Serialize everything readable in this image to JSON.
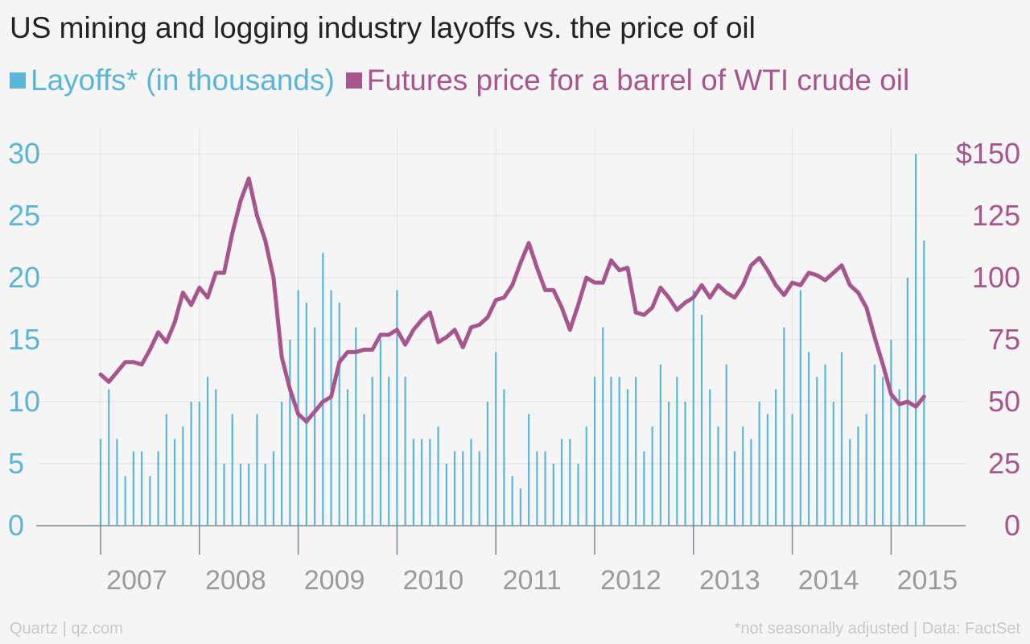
{
  "page": {
    "title": "US mining and logging industry layoffs vs. the price of oil",
    "source_left": "Quartz | qz.com",
    "source_right": "*not seasonally adjusted | Data: FactSet"
  },
  "colors": {
    "layoffs": "#5bb5d9",
    "oil": "#a8558e",
    "grid": "#e2e2e2",
    "axis": "#7a8a96",
    "xtick": "#9a9a9a"
  },
  "chart_data": {
    "type": "bar",
    "title": "US mining and logging industry layoffs vs. the price of oil",
    "x_ticks": [
      "2007",
      "2008",
      "2009",
      "2010",
      "2011",
      "2012",
      "2013",
      "2014",
      "2015"
    ],
    "y_left": {
      "min": 0,
      "max": 30,
      "ticks": [
        0,
        5,
        10,
        15,
        20,
        25,
        30
      ],
      "tick_labels": [
        "0",
        "5",
        "10",
        "15",
        "20",
        "25",
        "30"
      ]
    },
    "y_right": {
      "min": 0,
      "max": 150,
      "ticks": [
        0,
        25,
        50,
        75,
        100,
        125,
        150
      ],
      "tick_labels": [
        "0",
        "25",
        "50",
        "75",
        "100",
        "125",
        "$150"
      ]
    },
    "x_start": "2007-01",
    "grid": true,
    "legend_position": "top-left",
    "series": [
      {
        "name": "Layoffs* (in thousands)",
        "type": "bar",
        "axis": "left",
        "color": "#5bb5d9",
        "values": [
          7,
          11,
          7,
          4,
          6,
          6,
          4,
          6,
          9,
          7,
          8,
          10,
          10,
          12,
          11,
          5,
          9,
          5,
          5,
          9,
          5,
          6,
          10,
          15,
          19,
          18,
          16,
          22,
          19,
          18,
          11,
          16,
          9,
          12,
          15,
          12,
          19,
          12,
          7,
          7,
          7,
          8,
          5,
          6,
          6,
          7,
          6,
          10,
          14,
          11,
          4,
          3,
          9,
          6,
          6,
          5,
          7,
          7,
          5,
          8,
          12,
          16,
          12,
          12,
          11,
          12,
          6,
          8,
          13,
          10,
          12,
          10,
          19,
          17,
          11,
          8,
          13,
          6,
          8,
          7,
          10,
          9,
          11,
          16,
          9,
          19,
          14,
          12,
          13,
          10,
          14,
          7,
          8,
          9,
          13,
          12,
          15,
          11,
          20,
          30,
          23
        ]
      },
      {
        "name": "Futures price for a barrel of WTI crude oil",
        "type": "line",
        "axis": "right",
        "color": "#a8558e",
        "values": [
          61,
          58,
          62,
          66,
          66,
          65,
          71,
          78,
          74,
          82,
          94,
          89,
          96,
          92,
          102,
          102,
          118,
          131,
          140,
          125,
          115,
          100,
          68,
          55,
          45,
          42,
          46,
          50,
          52,
          66,
          70,
          70,
          71,
          71,
          77,
          77,
          79,
          73,
          79,
          83,
          86,
          74,
          76,
          79,
          72,
          80,
          81,
          84,
          91,
          92,
          97,
          106,
          114,
          104,
          95,
          95,
          88,
          79,
          89,
          100,
          98,
          98,
          107,
          103,
          104,
          86,
          85,
          88,
          96,
          92,
          87,
          90,
          92,
          97,
          92,
          97,
          94,
          92,
          97,
          105,
          108,
          103,
          97,
          93,
          98,
          97,
          102,
          101,
          99,
          102,
          105,
          97,
          94,
          88,
          76,
          65,
          53,
          49,
          50,
          48,
          52
        ]
      }
    ]
  }
}
